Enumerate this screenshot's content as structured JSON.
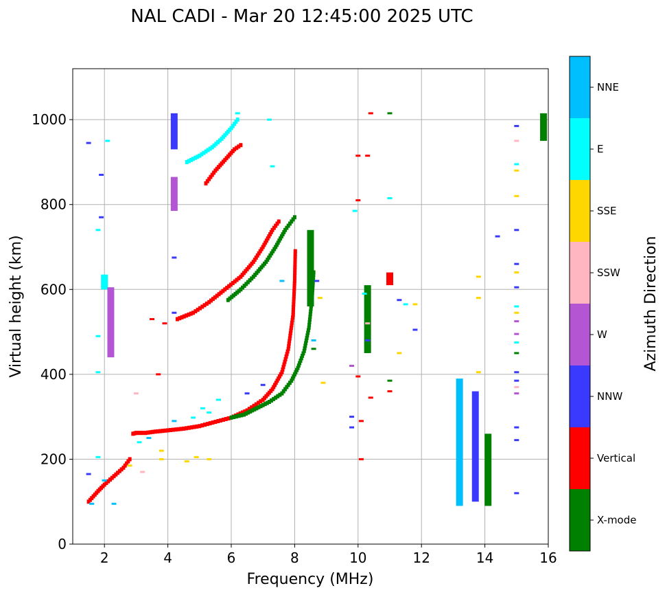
{
  "chart_data": {
    "type": "scatter",
    "title": "NAL CADI - Mar 20 12:45:00 2025 UTC",
    "xlabel": "Frequency (MHz)",
    "ylabel": "Virtual height (km)",
    "xlim": [
      1.0,
      16.0
    ],
    "ylim": [
      0,
      1120
    ],
    "xticks": [
      2,
      4,
      6,
      8,
      10,
      12,
      14,
      16
    ],
    "yticks": [
      0,
      200,
      400,
      600,
      800,
      1000
    ],
    "grid": true,
    "colorbar": {
      "label": "Azimuth Direction",
      "categories": [
        {
          "name": "X-mode",
          "color": "#008000"
        },
        {
          "name": "Vertical",
          "color": "#ff0000"
        },
        {
          "name": "NNW",
          "color": "#3a3aff"
        },
        {
          "name": "W",
          "color": "#b455d4"
        },
        {
          "name": "SSW",
          "color": "#ffb6c1"
        },
        {
          "name": "SSE",
          "color": "#ffd700"
        },
        {
          "name": "E",
          "color": "#00ffff"
        },
        {
          "name": "NNE",
          "color": "#00bfff"
        }
      ]
    },
    "traces": [
      {
        "name": "O-mode F-layer trace",
        "category": "Vertical",
        "points": [
          [
            2.9,
            260
          ],
          [
            3.0,
            262
          ],
          [
            3.3,
            262
          ],
          [
            3.6,
            265
          ],
          [
            4.0,
            268
          ],
          [
            4.5,
            272
          ],
          [
            5.0,
            278
          ],
          [
            5.5,
            288
          ],
          [
            6.0,
            298
          ],
          [
            6.5,
            315
          ],
          [
            7.0,
            340
          ],
          [
            7.3,
            365
          ],
          [
            7.6,
            405
          ],
          [
            7.8,
            460
          ],
          [
            7.95,
            540
          ],
          [
            8.0,
            620
          ],
          [
            8.02,
            690
          ]
        ]
      },
      {
        "name": "X-mode F-layer trace",
        "category": "X-mode",
        "points": [
          [
            6.0,
            298
          ],
          [
            6.4,
            305
          ],
          [
            6.8,
            320
          ],
          [
            7.2,
            335
          ],
          [
            7.6,
            355
          ],
          [
            7.9,
            385
          ],
          [
            8.1,
            415
          ],
          [
            8.3,
            455
          ],
          [
            8.45,
            510
          ],
          [
            8.55,
            580
          ],
          [
            8.6,
            640
          ]
        ]
      },
      {
        "name": "Multi-hop O-mode trace",
        "category": "Vertical",
        "points": [
          [
            4.3,
            530
          ],
          [
            4.8,
            545
          ],
          [
            5.3,
            570
          ],
          [
            5.8,
            600
          ],
          [
            6.3,
            630
          ],
          [
            6.7,
            665
          ],
          [
            7.0,
            700
          ],
          [
            7.3,
            740
          ],
          [
            7.5,
            760
          ]
        ]
      },
      {
        "name": "Multi-hop X-mode trace",
        "category": "X-mode",
        "points": [
          [
            5.9,
            575
          ],
          [
            6.3,
            600
          ],
          [
            6.7,
            630
          ],
          [
            7.1,
            665
          ],
          [
            7.4,
            700
          ],
          [
            7.7,
            740
          ],
          [
            8.0,
            770
          ]
        ]
      },
      {
        "name": "Upper oblique echo",
        "category": "E",
        "points": [
          [
            4.6,
            900
          ],
          [
            5.0,
            915
          ],
          [
            5.4,
            935
          ],
          [
            5.7,
            955
          ],
          [
            6.0,
            980
          ],
          [
            6.2,
            1000
          ]
        ]
      },
      {
        "name": "Upper oblique echo Vertical",
        "category": "Vertical",
        "points": [
          [
            5.2,
            850
          ],
          [
            5.5,
            880
          ],
          [
            5.8,
            905
          ],
          [
            6.1,
            930
          ],
          [
            6.3,
            940
          ]
        ]
      },
      {
        "name": "Low-frequency echoes",
        "category": "Vertical",
        "points": [
          [
            1.5,
            100
          ],
          [
            1.8,
            125
          ],
          [
            2.0,
            140
          ],
          [
            2.3,
            160
          ],
          [
            2.6,
            180
          ],
          [
            2.8,
            200
          ]
        ]
      }
    ],
    "columns": [
      {
        "x": 4.2,
        "ymin": 785,
        "ymax": 865,
        "category": "W"
      },
      {
        "x": 4.2,
        "ymin": 930,
        "ymax": 1015,
        "category": "NNW"
      },
      {
        "x": 13.2,
        "ymin": 90,
        "ymax": 390,
        "category": "NNE"
      },
      {
        "x": 13.7,
        "ymin": 100,
        "ymax": 360,
        "category": "NNW"
      },
      {
        "x": 14.1,
        "ymin": 90,
        "ymax": 260,
        "category": "X-mode"
      },
      {
        "x": 15.85,
        "ymin": 950,
        "ymax": 1015,
        "category": "X-mode"
      },
      {
        "x": 2.0,
        "ymin": 600,
        "ymax": 635,
        "category": "E"
      },
      {
        "x": 2.2,
        "ymin": 440,
        "ymax": 605,
        "category": "W"
      },
      {
        "x": 10.3,
        "ymin": 450,
        "ymax": 610,
        "category": "X-mode"
      },
      {
        "x": 11.0,
        "ymin": 610,
        "ymax": 640,
        "category": "Vertical"
      },
      {
        "x": 8.5,
        "ymin": 560,
        "ymax": 740,
        "category": "X-mode"
      }
    ],
    "scatter_points": [
      [
        2.1,
        950,
        "E"
      ],
      [
        1.8,
        740,
        "E"
      ],
      [
        1.9,
        870,
        "NNW"
      ],
      [
        1.5,
        945,
        "NNW"
      ],
      [
        1.9,
        770,
        "NNW"
      ],
      [
        3.9,
        520,
        "Vertical"
      ],
      [
        3.5,
        530,
        "Vertical"
      ],
      [
        6.2,
        1015,
        "E"
      ],
      [
        7.2,
        1000,
        "E"
      ],
      [
        7.3,
        890,
        "E"
      ],
      [
        10.0,
        915,
        "Vertical"
      ],
      [
        10.3,
        915,
        "Vertical"
      ],
      [
        10.4,
        1015,
        "Vertical"
      ],
      [
        11.0,
        1015,
        "X-mode"
      ],
      [
        10.0,
        810,
        "Vertical"
      ],
      [
        11.0,
        815,
        "E"
      ],
      [
        9.9,
        785,
        "E"
      ],
      [
        14.4,
        725,
        "NNW"
      ],
      [
        13.8,
        630,
        "SSE"
      ],
      [
        13.8,
        580,
        "SSE"
      ],
      [
        13.8,
        405,
        "SSE"
      ],
      [
        15.0,
        985,
        "NNW"
      ],
      [
        15.0,
        950,
        "SSW"
      ],
      [
        15.0,
        895,
        "E"
      ],
      [
        15.0,
        880,
        "SSE"
      ],
      [
        15.0,
        820,
        "SSE"
      ],
      [
        15.0,
        740,
        "NNW"
      ],
      [
        15.0,
        660,
        "NNW"
      ],
      [
        15.0,
        640,
        "SSE"
      ],
      [
        15.0,
        605,
        "NNW"
      ],
      [
        15.0,
        560,
        "E"
      ],
      [
        15.0,
        545,
        "SSE"
      ],
      [
        15.0,
        525,
        "W"
      ],
      [
        15.0,
        495,
        "W"
      ],
      [
        15.0,
        475,
        "E"
      ],
      [
        15.0,
        450,
        "X-mode"
      ],
      [
        15.0,
        405,
        "NNW"
      ],
      [
        15.0,
        385,
        "NNW"
      ],
      [
        15.0,
        370,
        "SSW"
      ],
      [
        15.0,
        355,
        "W"
      ],
      [
        15.0,
        275,
        "NNW"
      ],
      [
        15.0,
        245,
        "NNW"
      ],
      [
        15.0,
        120,
        "NNW"
      ],
      [
        11.3,
        575,
        "NNW"
      ],
      [
        11.5,
        565,
        "E"
      ],
      [
        11.8,
        565,
        "SSE"
      ],
      [
        11.8,
        505,
        "NNW"
      ],
      [
        11.3,
        450,
        "SSE"
      ],
      [
        10.2,
        590,
        "E"
      ],
      [
        10.3,
        520,
        "SSW"
      ],
      [
        10.3,
        480,
        "NNW"
      ],
      [
        9.8,
        420,
        "W"
      ],
      [
        10.0,
        395,
        "Vertical"
      ],
      [
        9.8,
        300,
        "NNW"
      ],
      [
        10.1,
        290,
        "Vertical"
      ],
      [
        9.8,
        275,
        "NNW"
      ],
      [
        10.1,
        200,
        "Vertical"
      ],
      [
        10.4,
        345,
        "Vertical"
      ],
      [
        11.0,
        360,
        "Vertical"
      ],
      [
        11.0,
        385,
        "X-mode"
      ],
      [
        8.9,
        380,
        "SSE"
      ],
      [
        8.6,
        460,
        "X-mode"
      ],
      [
        8.6,
        480,
        "NNE"
      ],
      [
        8.8,
        580,
        "SSE"
      ],
      [
        8.7,
        620,
        "NNW"
      ],
      [
        3.7,
        400,
        "Vertical"
      ],
      [
        2.0,
        150,
        "NNE"
      ],
      [
        1.6,
        95,
        "NNE"
      ],
      [
        2.3,
        95,
        "NNE"
      ],
      [
        1.8,
        205,
        "E"
      ],
      [
        1.8,
        405,
        "E"
      ],
      [
        1.8,
        490,
        "E"
      ],
      [
        1.5,
        165,
        "NNW"
      ],
      [
        3.8,
        200,
        "SSE"
      ],
      [
        3.8,
        220,
        "SSE"
      ],
      [
        4.6,
        195,
        "SSE"
      ],
      [
        4.9,
        205,
        "SSE"
      ],
      [
        5.3,
        200,
        "SSE"
      ],
      [
        3.2,
        170,
        "SSW"
      ],
      [
        2.8,
        185,
        "SSE"
      ],
      [
        3.0,
        355,
        "SSW"
      ],
      [
        4.8,
        298,
        "E"
      ],
      [
        5.1,
        320,
        "E"
      ],
      [
        5.3,
        310,
        "E"
      ],
      [
        5.6,
        340,
        "E"
      ],
      [
        4.2,
        290,
        "NNE"
      ],
      [
        3.4,
        250,
        "NNE"
      ],
      [
        3.1,
        240,
        "E"
      ],
      [
        4.2,
        675,
        "NNW"
      ],
      [
        4.2,
        545,
        "NNW"
      ],
      [
        7.6,
        620,
        "NNE"
      ],
      [
        6.5,
        355,
        "NNW"
      ],
      [
        7.0,
        375,
        "NNW"
      ]
    ]
  }
}
